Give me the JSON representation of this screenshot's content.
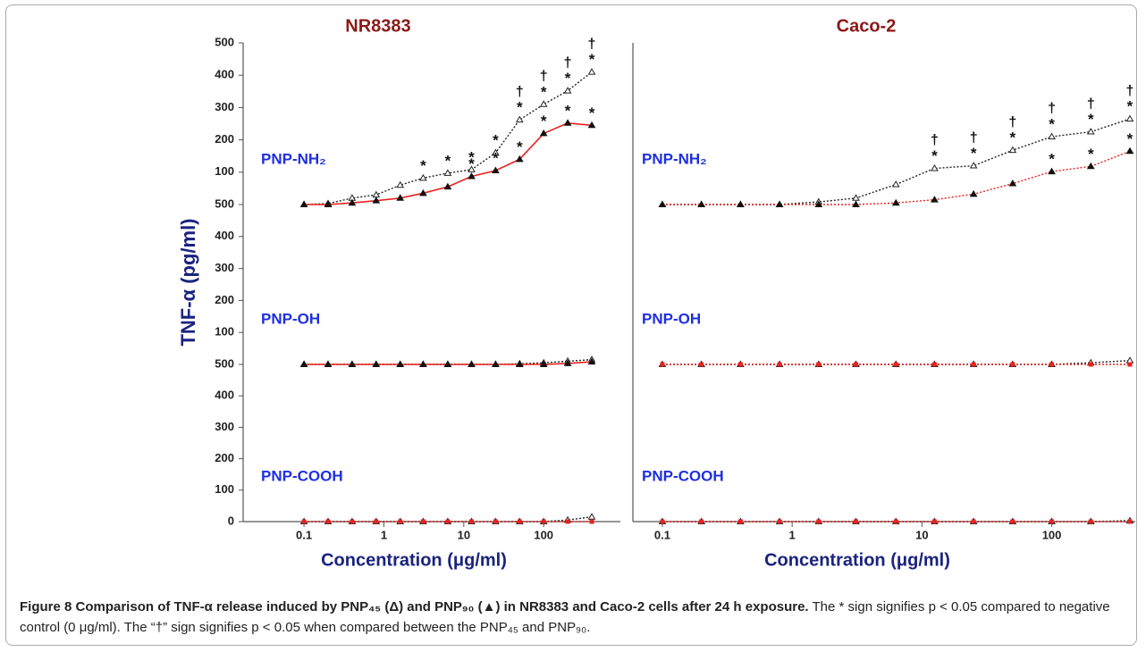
{
  "ylabel": "TNF-α (pg/ml)",
  "caption": {
    "title": "Figure 8 Comparison of TNF-α release induced by PNP₄₅ (Δ) and PNP₉₀ (▲) in NR8383 and Caco-2 cells after 24 h exposure.",
    "text": "The * sign signifies p < 0.05 compared to negative control (0 μg/ml). The “†” sign signifies p < 0.05 when compared between the PNP₄₅ and PNP₉₀."
  },
  "chart_data": [
    {
      "type": "line",
      "title": "NR8383",
      "label": "PNP-NH₂",
      "xscale": "log",
      "xlim": [
        0.0173,
        912
      ],
      "ylim": [
        0,
        500
      ],
      "yticks": [
        100,
        200,
        300,
        400,
        500
      ],
      "x": [
        0.1,
        0.2,
        0.4,
        0.8,
        1.6,
        3.1,
        6.3,
        12.5,
        25,
        50,
        100,
        200,
        400
      ],
      "series": [
        {
          "color": "#222222",
          "linestyle": "dotted",
          "marker": "open-triangle",
          "values": [
            0,
            3,
            20,
            30,
            60,
            82,
            97,
            108,
            160,
            262,
            310,
            352,
            410
          ],
          "stars": [
            null,
            null,
            null,
            null,
            null,
            "*",
            "*",
            "*",
            "*",
            "*",
            "*",
            "*",
            "*"
          ],
          "daggers": [
            null,
            null,
            null,
            null,
            null,
            null,
            null,
            null,
            null,
            "†",
            "†",
            "†",
            "†"
          ]
        },
        {
          "color": "#e8231f",
          "linestyle": "solid",
          "marker": "triangle",
          "marker_color": "#111111",
          "values": [
            0,
            0,
            5,
            12,
            20,
            35,
            55,
            87,
            105,
            140,
            220,
            252,
            245
          ],
          "stars": [
            null,
            null,
            null,
            null,
            null,
            null,
            null,
            "*",
            "*",
            "*",
            "*",
            "*",
            "*"
          ]
        }
      ]
    },
    {
      "type": "line",
      "title": "Caco-2",
      "label": "PNP-NH₂",
      "xscale": "log",
      "xlim": [
        0.0593,
        440
      ],
      "ylim": [
        0,
        500
      ],
      "x": [
        0.1,
        0.2,
        0.4,
        0.8,
        1.6,
        3.1,
        6.3,
        12.5,
        25,
        50,
        100,
        200,
        400
      ],
      "series": [
        {
          "color": "#222222",
          "linestyle": "dotted",
          "marker": "open-triangle",
          "values": [
            0,
            0,
            0,
            0,
            8,
            20,
            62,
            112,
            120,
            168,
            210,
            225,
            265
          ],
          "stars": [
            null,
            null,
            null,
            null,
            null,
            null,
            null,
            "*",
            "*",
            "*",
            "*",
            "*",
            "*"
          ],
          "daggers": [
            null,
            null,
            null,
            null,
            null,
            null,
            null,
            "†",
            "†",
            "†",
            "†",
            "†",
            "†"
          ]
        },
        {
          "color": "#e8231f",
          "linestyle": "dotted",
          "marker": "triangle",
          "marker_color": "#111111",
          "values": [
            0,
            0,
            0,
            0,
            0,
            0,
            5,
            15,
            32,
            65,
            102,
            118,
            165
          ],
          "stars": [
            null,
            null,
            null,
            null,
            null,
            null,
            null,
            null,
            null,
            null,
            "*",
            "*",
            "*"
          ]
        }
      ]
    },
    {
      "type": "line",
      "label": "PNP-OH",
      "xscale": "log",
      "xlim": [
        0.0173,
        912
      ],
      "ylim": [
        0,
        500
      ],
      "yticks": [
        100,
        200,
        300,
        400,
        500
      ],
      "x": [
        0.1,
        0.2,
        0.4,
        0.8,
        1.6,
        3.1,
        6.3,
        12.5,
        25,
        50,
        100,
        200,
        400
      ],
      "series": [
        {
          "color": "#222222",
          "linestyle": "dotted",
          "marker": "open-triangle",
          "values": [
            0,
            0,
            0,
            0,
            0,
            0,
            0,
            0,
            0,
            2,
            5,
            10,
            15
          ]
        },
        {
          "color": "#e8231f",
          "linestyle": "solid",
          "marker": "triangle",
          "marker_color": "#111111",
          "values": [
            0,
            0,
            0,
            0,
            0,
            0,
            0,
            0,
            0,
            0,
            0,
            3,
            8
          ]
        }
      ]
    },
    {
      "type": "line",
      "label": "PNP-OH",
      "xscale": "log",
      "xlim": [
        0.0593,
        440
      ],
      "ylim": [
        0,
        500
      ],
      "x": [
        0.1,
        0.2,
        0.4,
        0.8,
        1.6,
        3.1,
        6.3,
        12.5,
        25,
        50,
        100,
        200,
        400
      ],
      "series": [
        {
          "color": "#222222",
          "linestyle": "dotted",
          "marker": "open-triangle",
          "values": [
            0,
            0,
            0,
            0,
            0,
            0,
            0,
            0,
            0,
            0,
            0,
            5,
            12
          ]
        },
        {
          "color": "#e8231f",
          "linestyle": "dotted",
          "marker": "square",
          "marker_color": "#e8231f",
          "values": [
            0,
            0,
            0,
            0,
            0,
            0,
            0,
            0,
            0,
            0,
            0,
            0,
            0
          ]
        }
      ]
    },
    {
      "type": "line",
      "label": "PNP-COOH",
      "xscale": "log",
      "xlim": [
        0.0173,
        912
      ],
      "ylim": [
        0,
        500
      ],
      "yticks": [
        0,
        100,
        200,
        300,
        400,
        500
      ],
      "xticks": [
        0.1,
        1,
        10,
        100
      ],
      "xlabel": "Concentration (μg/ml)",
      "x": [
        0.1,
        0.2,
        0.4,
        0.8,
        1.6,
        3.1,
        6.3,
        12.5,
        25,
        50,
        100,
        200,
        400
      ],
      "series": [
        {
          "color": "#222222",
          "linestyle": "dotted",
          "marker": "open-triangle",
          "values": [
            0,
            0,
            0,
            0,
            0,
            0,
            0,
            0,
            0,
            0,
            0,
            5,
            15
          ]
        },
        {
          "color": "#e8231f",
          "linestyle": "dotted",
          "marker": "square",
          "marker_color": "#e8231f",
          "values": [
            0,
            0,
            0,
            0,
            0,
            0,
            0,
            0,
            0,
            0,
            0,
            0,
            0
          ]
        }
      ]
    },
    {
      "type": "line",
      "label": "PNP-COOH",
      "xscale": "log",
      "xlim": [
        0.0593,
        440
      ],
      "ylim": [
        0,
        500
      ],
      "xticks": [
        0.1,
        1,
        10,
        100
      ],
      "xlabel": "Concentration (μg/ml)",
      "x": [
        0.1,
        0.2,
        0.4,
        0.8,
        1.6,
        3.1,
        6.3,
        12.5,
        25,
        50,
        100,
        200,
        400
      ],
      "series": [
        {
          "color": "#222222",
          "linestyle": "dotted",
          "marker": "open-triangle",
          "values": [
            0,
            0,
            0,
            0,
            0,
            0,
            0,
            0,
            0,
            0,
            0,
            0,
            3
          ]
        },
        {
          "color": "#e8231f",
          "linestyle": "dotted",
          "marker": "square",
          "marker_color": "#e8231f",
          "values": [
            0,
            0,
            0,
            0,
            0,
            0,
            0,
            0,
            0,
            0,
            0,
            0,
            0
          ]
        }
      ]
    }
  ]
}
